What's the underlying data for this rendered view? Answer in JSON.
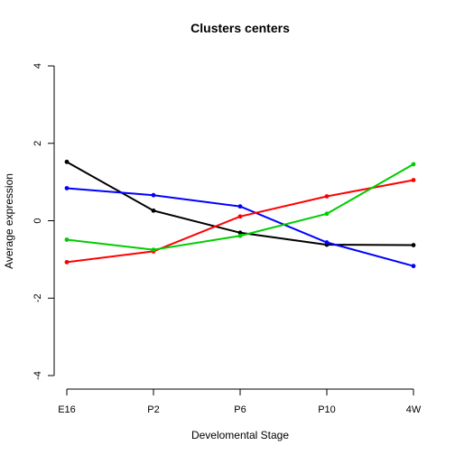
{
  "chart_data": {
    "type": "line",
    "title": "Clusters centers",
    "xlabel": "Develomental Stage",
    "ylabel": "Average expression",
    "categories": [
      "E16",
      "P2",
      "P6",
      "P10",
      "4W"
    ],
    "yticks": [
      -4,
      -2,
      0,
      2,
      4
    ],
    "ylim": [
      -4,
      4
    ],
    "grid": false,
    "series": [
      {
        "color": "#000000",
        "values": [
          1.52,
          0.26,
          -0.31,
          -0.62,
          -0.63
        ]
      },
      {
        "color": "#0000ff",
        "values": [
          0.84,
          0.66,
          0.37,
          -0.56,
          -1.17
        ]
      },
      {
        "color": "#ff0000",
        "values": [
          -1.07,
          -0.79,
          0.11,
          0.63,
          1.05
        ]
      },
      {
        "color": "#00cd00",
        "values": [
          -0.49,
          -0.75,
          -0.39,
          0.18,
          1.46
        ]
      }
    ]
  }
}
